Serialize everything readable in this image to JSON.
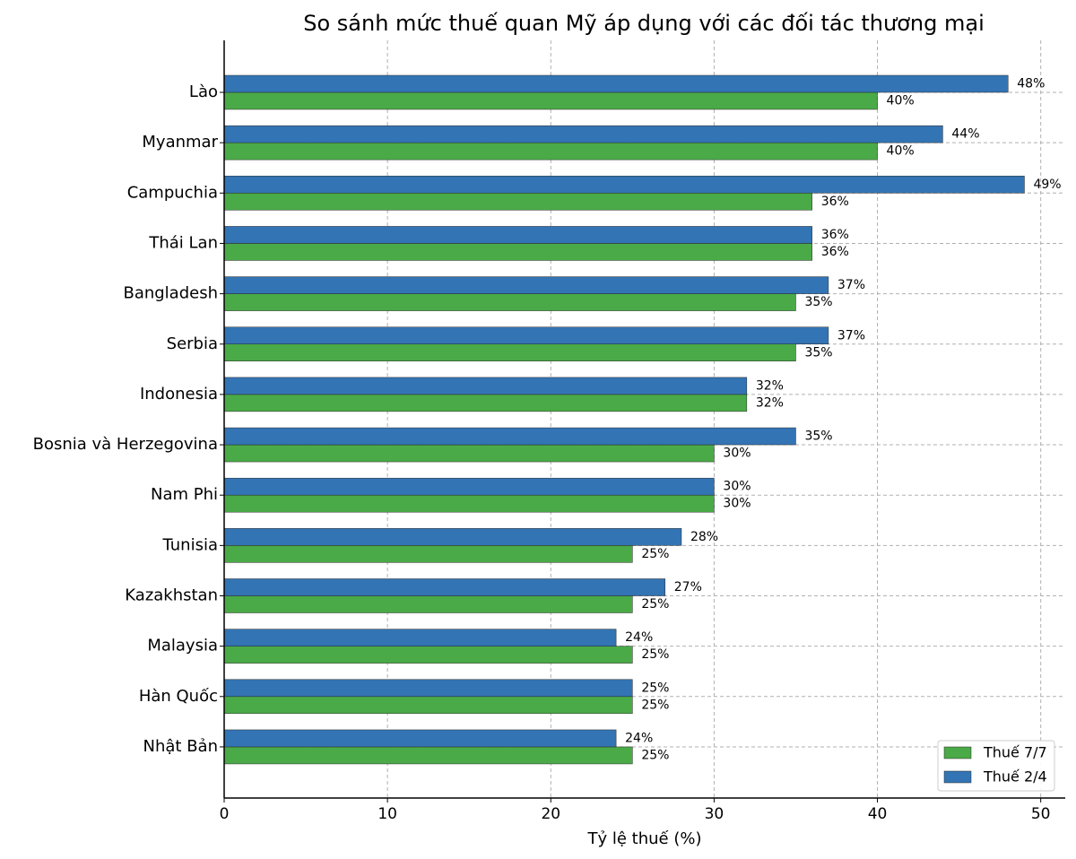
{
  "chart_data": {
    "type": "bar",
    "orientation": "horizontal",
    "title": "So sánh mức thuế quan Mỹ áp dụng với các đối tác thương mại",
    "x_label": "Tỷ lệ thuế (%)",
    "categories": [
      "Lào",
      "Myanmar",
      "Campuchia",
      "Thái Lan",
      "Bangladesh",
      "Serbia",
      "Indonesia",
      "Bosnia và Herzegovina",
      "Nam Phi",
      "Tunisia",
      "Kazakhstan",
      "Malaysia",
      "Hàn Quốc",
      "Nhật Bản"
    ],
    "series": [
      {
        "name": "Thuế 7/7",
        "color": "#4aaa47",
        "values": [
          40,
          40,
          36,
          36,
          35,
          35,
          32,
          30,
          30,
          25,
          25,
          25,
          25,
          25
        ],
        "value_labels": [
          "40%",
          "40%",
          "36%",
          "36%",
          "35%",
          "35%",
          "32%",
          "30%",
          "30%",
          "25%",
          "25%",
          "25%",
          "25%",
          "25%"
        ]
      },
      {
        "name": "Thuế 2/4",
        "color": "#3374b4",
        "values": [
          48,
          44,
          49,
          36,
          37,
          37,
          32,
          35,
          30,
          28,
          27,
          24,
          25,
          24
        ],
        "value_labels": [
          "48%",
          "44%",
          "49%",
          "36%",
          "37%",
          "37%",
          "32%",
          "35%",
          "30%",
          "28%",
          "27%",
          "24%",
          "25%",
          "24%"
        ]
      }
    ],
    "xlim": [
      0,
      51.5
    ],
    "xticks": [
      0,
      10,
      20,
      30,
      40,
      50
    ],
    "grid": true,
    "legend": "lower right"
  }
}
